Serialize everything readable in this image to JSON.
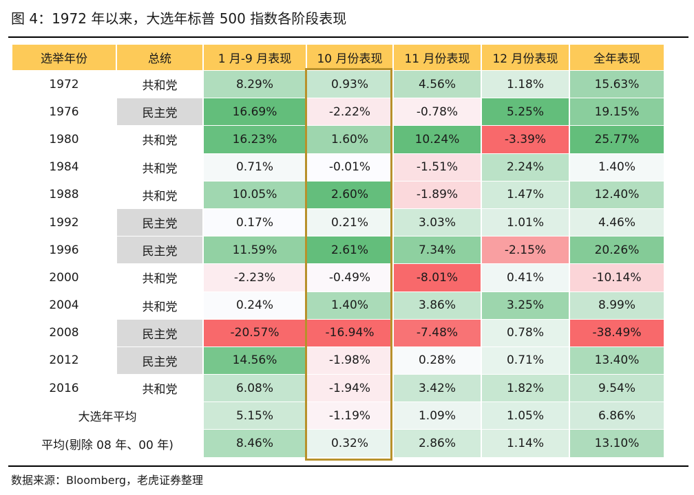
{
  "title": "图 4：1972 年以来，大选年标普 500 指数各阶段表现",
  "source": "数据来源：Bloomberg，老虎证券整理",
  "colors": {
    "header_bg": "#fdca58",
    "highlight_border": "#b8912b",
    "democrat_bg": "#d9d9d9",
    "positive_max": "#63be7b",
    "negative_max": "#f8696b",
    "neutral": "#fcfcff"
  },
  "chart_data": {
    "type": "table",
    "columns": [
      "选举年份",
      "总统",
      "1 月-9 月表现",
      "10 月份表现",
      "11 月份表现",
      "12 月份表现",
      "全年表现"
    ],
    "rows": [
      {
        "year": "1972",
        "party": "共和党",
        "values": [
          "8.29%",
          "0.93%",
          "4.56%",
          "1.18%",
          "15.63%"
        ]
      },
      {
        "year": "1976",
        "party": "民主党",
        "values": [
          "16.69%",
          "-2.22%",
          "-0.78%",
          "5.25%",
          "19.15%"
        ]
      },
      {
        "year": "1980",
        "party": "共和党",
        "values": [
          "16.23%",
          "1.60%",
          "10.24%",
          "-3.39%",
          "25.77%"
        ]
      },
      {
        "year": "1984",
        "party": "共和党",
        "values": [
          "0.71%",
          "-0.01%",
          "-1.51%",
          "2.24%",
          "1.40%"
        ]
      },
      {
        "year": "1988",
        "party": "共和党",
        "values": [
          "10.05%",
          "2.60%",
          "-1.89%",
          "1.47%",
          "12.40%"
        ]
      },
      {
        "year": "1992",
        "party": "民主党",
        "values": [
          "0.17%",
          "0.21%",
          "3.03%",
          "1.01%",
          "4.46%"
        ]
      },
      {
        "year": "1996",
        "party": "民主党",
        "values": [
          "11.59%",
          "2.61%",
          "7.34%",
          "-2.15%",
          "20.26%"
        ]
      },
      {
        "year": "2000",
        "party": "共和党",
        "values": [
          "-2.23%",
          "-0.49%",
          "-8.01%",
          "0.41%",
          "-10.14%"
        ]
      },
      {
        "year": "2004",
        "party": "共和党",
        "values": [
          "0.24%",
          "1.40%",
          "3.86%",
          "3.25%",
          "8.99%"
        ]
      },
      {
        "year": "2008",
        "party": "民主党",
        "values": [
          "-20.57%",
          "-16.94%",
          "-7.48%",
          "0.78%",
          "-38.49%"
        ]
      },
      {
        "year": "2012",
        "party": "民主党",
        "values": [
          "14.56%",
          "-1.98%",
          "0.28%",
          "0.71%",
          "13.40%"
        ]
      },
      {
        "year": "2016",
        "party": "共和党",
        "values": [
          "6.08%",
          "-1.94%",
          "3.42%",
          "1.82%",
          "9.54%"
        ]
      }
    ],
    "summary_rows": [
      {
        "label": "大选年平均",
        "values": [
          "5.15%",
          "-1.19%",
          "1.09%",
          "1.05%",
          "6.86%"
        ]
      },
      {
        "label": "平均(剔除 08 年、00 年)",
        "values": [
          "8.46%",
          "0.32%",
          "2.86%",
          "1.14%",
          "13.10%"
        ]
      }
    ],
    "highlighted_column": "10 月份表现",
    "democrat_party_label": "民主党"
  }
}
